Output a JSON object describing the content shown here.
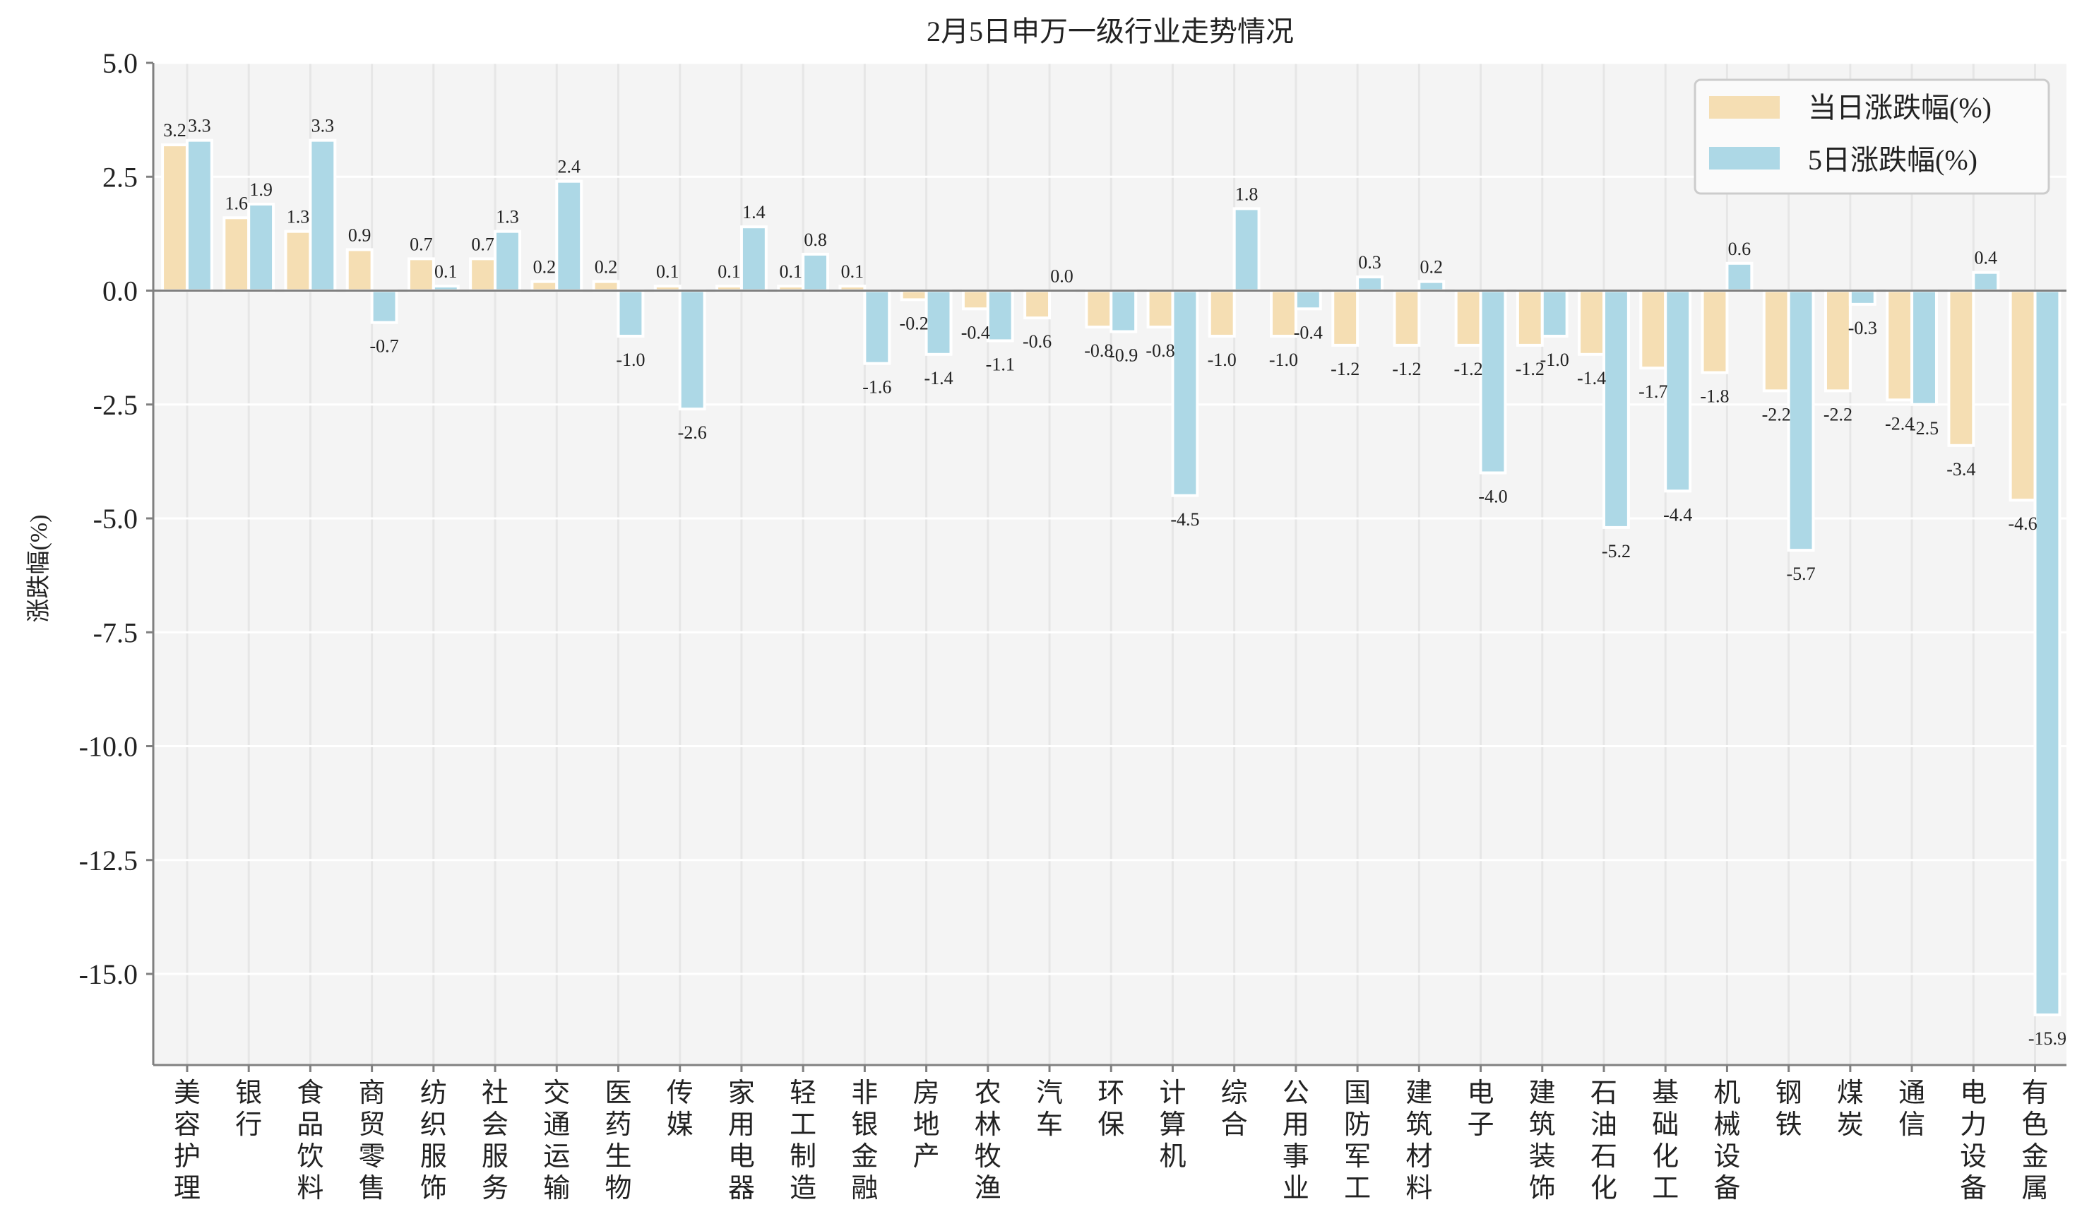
{
  "chart_data": {
    "type": "bar",
    "title": "2月5日申万一级行业走势情况",
    "xlabel": "",
    "ylabel": "涨跌幅(%)",
    "ylim": [
      -17,
      5
    ],
    "yticks": [
      "5.0",
      "2.5",
      "0.0",
      "-2.5",
      "-5.0",
      "-7.5",
      "-10.0",
      "-12.5",
      "-15.0"
    ],
    "ytick_values": [
      5,
      2.5,
      0,
      -2.5,
      -5,
      -7.5,
      -10,
      -12.5,
      -15
    ],
    "grid": true,
    "legend_position": "top-right",
    "categories": [
      "美容护理",
      "银行",
      "食品饮料",
      "商贸零售",
      "纺织服饰",
      "社会服务",
      "交通运输",
      "医药生物",
      "传媒",
      "家用电器",
      "轻工制造",
      "非银金融",
      "房地产",
      "农林牧渔",
      "汽车",
      "环保",
      "计算机",
      "综合",
      "公用事业",
      "国防军工",
      "建筑材料",
      "电子",
      "建筑装饰",
      "石油石化",
      "基础化工",
      "机械设备",
      "钢铁",
      "煤炭",
      "通信",
      "电力设备",
      "有色金属"
    ],
    "series": [
      {
        "name": "当日涨跌幅(%)",
        "color": "#f5deb3",
        "values": [
          3.2,
          1.6,
          1.3,
          0.9,
          0.7,
          0.7,
          0.2,
          0.2,
          0.1,
          0.1,
          0.1,
          0.1,
          -0.2,
          -0.4,
          -0.6,
          -0.8,
          -0.8,
          -1.0,
          -1.0,
          -1.2,
          -1.2,
          -1.2,
          -1.2,
          -1.4,
          -1.7,
          -1.8,
          -2.2,
          -2.2,
          -2.4,
          -3.4,
          -4.6
        ]
      },
      {
        "name": "5日涨跌幅(%)",
        "color": "#add8e6",
        "values": [
          3.3,
          1.9,
          3.3,
          -0.7,
          0.1,
          1.3,
          2.4,
          -1.0,
          -2.6,
          1.4,
          0.8,
          -1.6,
          -1.4,
          -1.1,
          0.0,
          -0.9,
          -4.5,
          1.8,
          -0.4,
          0.3,
          0.2,
          -4.0,
          -1.0,
          -5.2,
          -4.4,
          0.6,
          -5.7,
          -0.3,
          -2.5,
          0.4,
          -15.9
        ]
      }
    ]
  }
}
